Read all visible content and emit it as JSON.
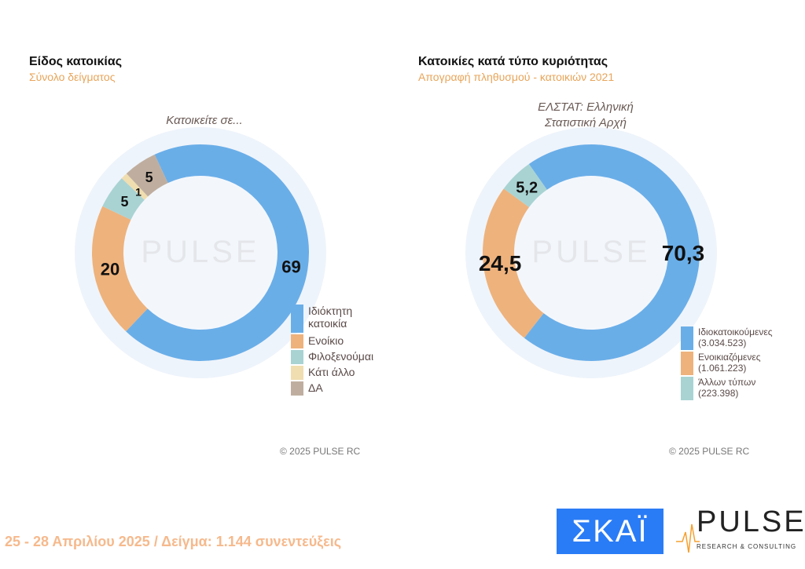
{
  "chart_data": [
    {
      "type": "pie",
      "variant": "donut",
      "title": "Είδος κατοικίας",
      "subtitle": "Σύνολο δείγματος",
      "caption": "Κατοικείτε σε...",
      "categories": [
        "Ιδιόκτητη κατοικία",
        "Ενοίκιο",
        "Φιλοξενούμαι",
        "Κάτι άλλο",
        "ΔΑ"
      ],
      "values": [
        69,
        20,
        5,
        1,
        5
      ],
      "labels": [
        "69",
        "20",
        "5",
        "1",
        "5"
      ],
      "colors": [
        "#6aaee8",
        "#eeb27c",
        "#a9d3d3",
        "#f0deb0",
        "#bfae9f"
      ],
      "legend_position": "bottom-right",
      "copyright": "©  2025  PULSE RC"
    },
    {
      "type": "pie",
      "variant": "donut",
      "title": "Κατοικίες κατά τύπο κυριότητας",
      "subtitle": "Απογραφή πληθυσμού - κατοικιών 2021",
      "caption": "ΕΛΣΤΑΤ: Ελληνική Στατιστική Αρχή",
      "categories": [
        "Ιδιοκατοικούμενες (3.034.523)",
        "Ενοικιαζόμενες (1.061.223)",
        "Άλλων τύπων (223.398)"
      ],
      "values": [
        70.3,
        24.5,
        5.2
      ],
      "labels": [
        "70,3",
        "24,5",
        "5,2"
      ],
      "colors": [
        "#6aaee8",
        "#eeb27c",
        "#a9d3d3"
      ],
      "legend_position": "bottom-right",
      "copyright": "©  2025  PULSE RC"
    }
  ],
  "footer": {
    "text": "25 - 28 Απριλίου 2025  /  Δείγμα:  1.144 συνεντεύξεις"
  },
  "logos": {
    "skai": "ΣΚΑΪ",
    "pulse": "PULSE",
    "pulse_sub": "RESEARCH & CONSULTING"
  }
}
